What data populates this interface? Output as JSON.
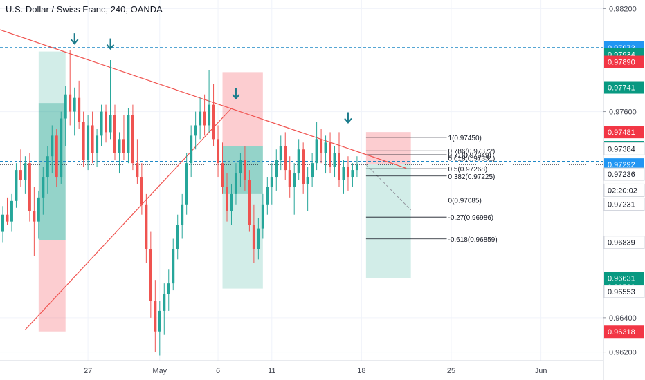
{
  "header": {
    "title": "U.S. Dollar / Swiss Franc, 240, OANDA"
  },
  "colors": {
    "up": "#26a69a",
    "down": "#ef5350",
    "trendline": "#f0534f",
    "dashed_blue": "#1e88c6",
    "grid": "#f0f3fa",
    "axis_text": "#434651"
  },
  "chart_data": {
    "type": "candlestick",
    "ylim": [
      0.9615,
      0.9825
    ],
    "y_ticks": [
      {
        "value": 0.982,
        "label": "0.98200"
      },
      {
        "value": 0.976,
        "label": "0.97600"
      },
      {
        "value": 0.964,
        "label": "0.96400"
      },
      {
        "value": 0.962,
        "label": "0.96200"
      }
    ],
    "x_ticks": [
      {
        "index": 19,
        "label": "27"
      },
      {
        "index": 35,
        "label": "May"
      },
      {
        "index": 48,
        "label": "6"
      },
      {
        "index": 60,
        "label": "11"
      },
      {
        "index": 80,
        "label": "18"
      },
      {
        "index": 100,
        "label": "25"
      },
      {
        "index": 120,
        "label": "Jun"
      }
    ],
    "candles": [
      [
        0.969,
        0.9705,
        0.9684,
        0.97
      ],
      [
        0.97,
        0.971,
        0.9694,
        0.9696
      ],
      [
        0.9696,
        0.9712,
        0.969,
        0.9708
      ],
      [
        0.9708,
        0.973,
        0.9704,
        0.9726
      ],
      [
        0.9726,
        0.9738,
        0.9716,
        0.972
      ],
      [
        0.972,
        0.9734,
        0.9712,
        0.973
      ],
      [
        0.973,
        0.9736,
        0.9696,
        0.9702
      ],
      [
        0.9702,
        0.9716,
        0.9676,
        0.9696
      ],
      [
        0.9696,
        0.9714,
        0.9686,
        0.971
      ],
      [
        0.971,
        0.9728,
        0.97,
        0.9722
      ],
      [
        0.9722,
        0.974,
        0.9712,
        0.9734
      ],
      [
        0.9734,
        0.9752,
        0.9724,
        0.9746
      ],
      [
        0.9746,
        0.975,
        0.9716,
        0.9722
      ],
      [
        0.9722,
        0.976,
        0.9718,
        0.9756
      ],
      [
        0.9756,
        0.9775,
        0.974,
        0.977
      ],
      [
        0.977,
        0.9796,
        0.9752,
        0.976
      ],
      [
        0.976,
        0.9774,
        0.9746,
        0.9768
      ],
      [
        0.9768,
        0.9778,
        0.975,
        0.9754
      ],
      [
        0.9754,
        0.976,
        0.9728,
        0.9732
      ],
      [
        0.9732,
        0.9758,
        0.9726,
        0.9752
      ],
      [
        0.9752,
        0.976,
        0.973,
        0.9736
      ],
      [
        0.9736,
        0.975,
        0.9728,
        0.9746
      ],
      [
        0.9746,
        0.9764,
        0.974,
        0.976
      ],
      [
        0.976,
        0.9764,
        0.9742,
        0.9748
      ],
      [
        0.9748,
        0.979,
        0.9744,
        0.9758
      ],
      [
        0.9758,
        0.9764,
        0.9732,
        0.9736
      ],
      [
        0.9736,
        0.9748,
        0.9724,
        0.9744
      ],
      [
        0.9744,
        0.9758,
        0.9732,
        0.9736
      ],
      [
        0.9736,
        0.9762,
        0.973,
        0.9758
      ],
      [
        0.9758,
        0.9764,
        0.9726,
        0.973
      ],
      [
        0.973,
        0.9744,
        0.9718,
        0.9722
      ],
      [
        0.9722,
        0.973,
        0.97,
        0.9706
      ],
      [
        0.9706,
        0.9712,
        0.9672,
        0.968
      ],
      [
        0.968,
        0.969,
        0.964,
        0.965
      ],
      [
        0.965,
        0.9662,
        0.962,
        0.9632
      ],
      [
        0.9632,
        0.965,
        0.9618,
        0.9644
      ],
      [
        0.9644,
        0.966,
        0.963,
        0.9654
      ],
      [
        0.9654,
        0.9668,
        0.9644,
        0.966
      ],
      [
        0.966,
        0.9686,
        0.9656,
        0.968
      ],
      [
        0.968,
        0.97,
        0.9674,
        0.9694
      ],
      [
        0.9694,
        0.9712,
        0.9686,
        0.9706
      ],
      [
        0.9706,
        0.9736,
        0.97,
        0.973
      ],
      [
        0.973,
        0.9752,
        0.9722,
        0.9746
      ],
      [
        0.9746,
        0.976,
        0.9738,
        0.9752
      ],
      [
        0.9752,
        0.9768,
        0.9744,
        0.976
      ],
      [
        0.976,
        0.977,
        0.9746,
        0.9752
      ],
      [
        0.9752,
        0.9784,
        0.9748,
        0.9764
      ],
      [
        0.9764,
        0.9776,
        0.974,
        0.9744
      ],
      [
        0.9744,
        0.9752,
        0.9722,
        0.973
      ],
      [
        0.973,
        0.9742,
        0.9712,
        0.9716
      ],
      [
        0.9716,
        0.9724,
        0.9696,
        0.9702
      ],
      [
        0.9702,
        0.9718,
        0.9694,
        0.9712
      ],
      [
        0.9712,
        0.973,
        0.9706,
        0.9724
      ],
      [
        0.9724,
        0.9736,
        0.9716,
        0.9732
      ],
      [
        0.9732,
        0.974,
        0.9714,
        0.972
      ],
      [
        0.972,
        0.9726,
        0.969,
        0.9694
      ],
      [
        0.9694,
        0.9706,
        0.9672,
        0.968
      ],
      [
        0.968,
        0.9698,
        0.9674,
        0.9692
      ],
      [
        0.9692,
        0.9712,
        0.9686,
        0.9706
      ],
      [
        0.9706,
        0.9722,
        0.97,
        0.9716
      ],
      [
        0.9716,
        0.973,
        0.9706,
        0.9722
      ],
      [
        0.9722,
        0.9738,
        0.9714,
        0.9732
      ],
      [
        0.9732,
        0.9746,
        0.9726,
        0.974
      ],
      [
        0.974,
        0.9748,
        0.972,
        0.9726
      ],
      [
        0.9726,
        0.9734,
        0.971,
        0.9716
      ],
      [
        0.9716,
        0.973,
        0.97,
        0.9724
      ],
      [
        0.9724,
        0.9744,
        0.972,
        0.9738
      ],
      [
        0.9738,
        0.9742,
        0.9712,
        0.9718
      ],
      [
        0.9718,
        0.9728,
        0.9702,
        0.9722
      ],
      [
        0.9722,
        0.9736,
        0.9716,
        0.973
      ],
      [
        0.973,
        0.9754,
        0.9726,
        0.9744
      ],
      [
        0.9744,
        0.975,
        0.973,
        0.9736
      ],
      [
        0.9736,
        0.9746,
        0.9724,
        0.9742
      ],
      [
        0.9742,
        0.9748,
        0.9724,
        0.9728
      ],
      [
        0.9728,
        0.974,
        0.9722,
        0.9736
      ],
      [
        0.9736,
        0.9748,
        0.9716,
        0.972
      ],
      [
        0.972,
        0.9732,
        0.9712,
        0.9728
      ],
      [
        0.9728,
        0.9734,
        0.9714,
        0.9722
      ],
      [
        0.9722,
        0.973,
        0.9716,
        0.9726
      ],
      [
        0.9726,
        0.9734,
        0.9722,
        0.9729
      ]
    ],
    "trend_lines": [
      {
        "from": [
          -1,
          0.9808
        ],
        "to": [
          90,
          0.9727
        ]
      },
      {
        "from": [
          5,
          0.9633
        ],
        "to": [
          51,
          0.9762
        ]
      }
    ],
    "hlines": [
      {
        "value": 0.97973,
        "style": "dashed"
      },
      {
        "value": 0.9731,
        "style": "dashed"
      }
    ],
    "down_arrows": [
      [
        16,
        0.98
      ],
      [
        24,
        0.9797
      ],
      [
        52,
        0.9768
      ],
      [
        77,
        0.9754
      ]
    ],
    "position_boxes": [
      {
        "x0": 8,
        "x1": 14,
        "entry": 0.9685,
        "stop": 0.9632,
        "target": 0.9795,
        "entry_top": 0.9765
      },
      {
        "x0": 49,
        "x1": 58,
        "entry": 0.974,
        "stop": 0.9783,
        "target": 0.9657,
        "entry_top": 0.9712
      }
    ],
    "short_setup": {
      "x0": 81,
      "x1": 91,
      "entry": 0.97292,
      "stop": 0.97481,
      "target": 0.96631
    },
    "fib_levels": [
      {
        "value": 0.9745,
        "label": "1(0.97450)"
      },
      {
        "value": 0.97372,
        "label": "0.786(0.97372)"
      },
      {
        "value": 0.97349,
        "label": "0.71(0.97349)"
      },
      {
        "value": 0.97331,
        "label": "0.618(0.97331)"
      },
      {
        "value": 0.97268,
        "label": "0.5(0.97268)"
      },
      {
        "value": 0.97225,
        "label": "0.382(0.97225)"
      },
      {
        "value": 0.97085,
        "label": "0(0.97085)"
      },
      {
        "value": 0.96986,
        "label": "-0.27(0.96986)"
      },
      {
        "value": 0.96859,
        "label": "-0.618(0.96859)"
      }
    ],
    "price_tags": [
      {
        "value": 0.97973,
        "label": "0.97973",
        "bg": "#2196f3",
        "fg": "#ffffff"
      },
      {
        "value": 0.97934,
        "label": "0.97934",
        "bg": "#089981",
        "fg": "#ffffff"
      },
      {
        "value": 0.9789,
        "label": "0.97890",
        "bg": "#f23645",
        "fg": "#ffffff"
      },
      {
        "value": 0.97741,
        "label": "0.97741",
        "bg": "#089981",
        "fg": "#ffffff"
      },
      {
        "value": 0.97481,
        "label": "0.97481",
        "bg": "#f23645",
        "fg": "#ffffff"
      },
      {
        "value": 0.97393,
        "label": "0.97393",
        "bg": "#089981",
        "fg": "#ffffff"
      },
      {
        "value": 0.97384,
        "label": "0.97384",
        "bg": "#ffffff",
        "fg": "#131722"
      },
      {
        "value": 0.97292,
        "label": "0.97292",
        "bg": "#2196f3",
        "fg": "#ffffff"
      },
      {
        "value": 0.97236,
        "label": "0.97236",
        "bg": "#ffffff",
        "fg": "#131722"
      },
      {
        "value": 0.97142,
        "label": "02:20:02",
        "bg": "#ffffff",
        "fg": "#131722"
      },
      {
        "value": 0.97061,
        "label": "0.97231",
        "bg": "#ffffff",
        "fg": "#131722"
      },
      {
        "value": 0.96839,
        "label": "0.96839",
        "bg": "#ffffff",
        "fg": "#131722"
      },
      {
        "value": 0.96631,
        "label": "0.96631",
        "bg": "#089981",
        "fg": "#ffffff"
      },
      {
        "value": 0.9658,
        "label": "0.96580",
        "bg": "#089981",
        "fg": "#ffffff"
      },
      {
        "value": 0.96553,
        "label": "0.96553",
        "bg": "#ffffff",
        "fg": "#131722"
      },
      {
        "value": 0.96318,
        "label": "0.96318",
        "bg": "#f23645",
        "fg": "#ffffff"
      }
    ]
  }
}
